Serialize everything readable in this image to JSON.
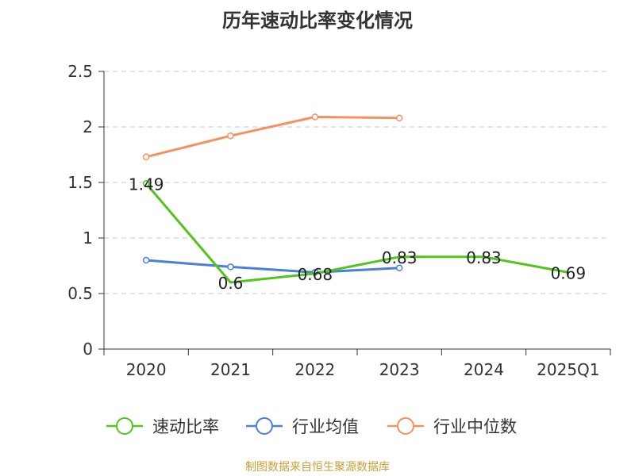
{
  "chart_data": {
    "type": "line",
    "title": "历年速动比率变化情况",
    "categories": [
      "2020",
      "2021",
      "2022",
      "2023",
      "2024",
      "2025Q1"
    ],
    "ylim": [
      0,
      2.5
    ],
    "yticks": [
      "0",
      "0.5",
      "1",
      "1.5",
      "2",
      "2.5"
    ],
    "grid": true,
    "legend": "bottom",
    "series": [
      {
        "name": "速动比率",
        "color": "#52c41a",
        "values": [
          1.49,
          0.6,
          0.68,
          0.83,
          0.83,
          0.69
        ],
        "labels": [
          "1.49",
          "0.6",
          "0.68",
          "0.83",
          "0.83",
          "0.69"
        ],
        "markers": "first-only"
      },
      {
        "name": "行业均值",
        "color": "#4a7fdb",
        "values": [
          0.8,
          0.74,
          0.69,
          0.73,
          null,
          null
        ]
      },
      {
        "name": "行业中位数",
        "color": "#f5915f",
        "values": [
          1.73,
          1.92,
          2.09,
          2.08,
          null,
          null
        ]
      }
    ]
  },
  "source": "制图数据来自恒生聚源数据库"
}
